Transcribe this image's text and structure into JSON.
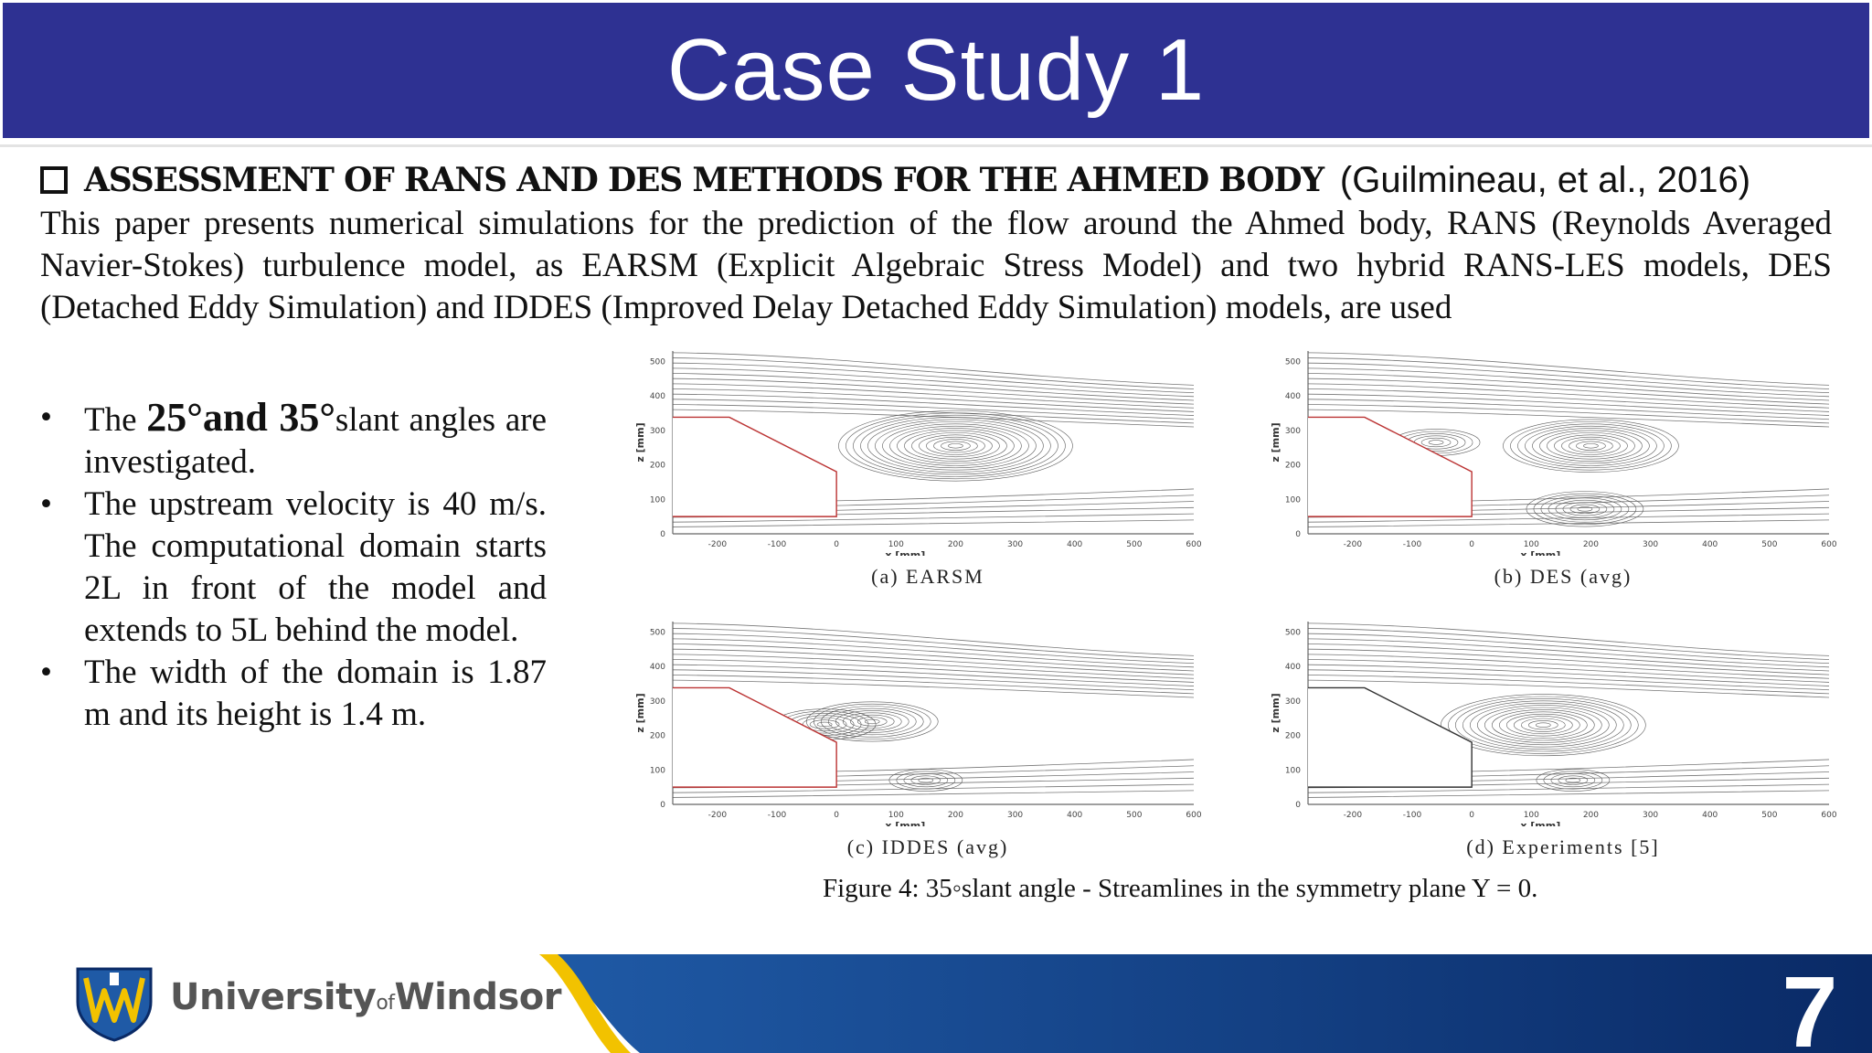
{
  "slide": {
    "title": "Case Study 1",
    "page_number": "7"
  },
  "heading": {
    "bold": "ASSESSMENT OF RANS AND DES METHODS FOR THE AHMED BODY",
    "citation": "(Guilmineau, et al., 2016)"
  },
  "intro": "This paper presents numerical simulations for the prediction of the flow around the Ahmed body, RANS (Reynolds Averaged Navier-Stokes) turbulence model, as  EARSM (Explicit Algebraic Stress Model) and two hybrid RANS-LES models, DES (Detached Eddy Simulation) and IDDES (Improved Delay Detached Eddy Simulation) models, are used",
  "bullets": [
    {
      "pre": "The ",
      "bold": "25°and 35°",
      "post": "slant angles are investigated."
    },
    {
      "pre": "The upstream velocity is 40 m/s. The computational domain starts 2L in front of the model and extends to 5L behind the model.",
      "bold": "",
      "post": ""
    },
    {
      "pre": "The width of the domain is 1.87 m and its height is 1.4 m.",
      "bold": "",
      "post": ""
    }
  ],
  "figure": {
    "caption": "Figure 4: 35◦slant angle - Streamlines in the symmetry plane Y = 0.",
    "x_label": "x [mm]",
    "y_label": "z [mm]",
    "x_ticks": [
      "-200",
      "-100",
      "0",
      "100",
      "200",
      "300",
      "400",
      "500",
      "600"
    ],
    "y_ticks": [
      "0",
      "100",
      "200",
      "300",
      "400",
      "500"
    ],
    "panels": [
      {
        "caption": "(a) EARSM"
      },
      {
        "caption": "(b) DES (avg)"
      },
      {
        "caption": "(c) IDDES (avg)"
      },
      {
        "caption": "(d) Experiments [5]"
      }
    ]
  },
  "footer": {
    "logo_main": "University",
    "logo_of": "of",
    "logo_end": "Windsor",
    "colors": {
      "gold": "#f2c200",
      "blue_dark": "#0a2a66",
      "blue_mid": "#1f5aa6"
    }
  }
}
